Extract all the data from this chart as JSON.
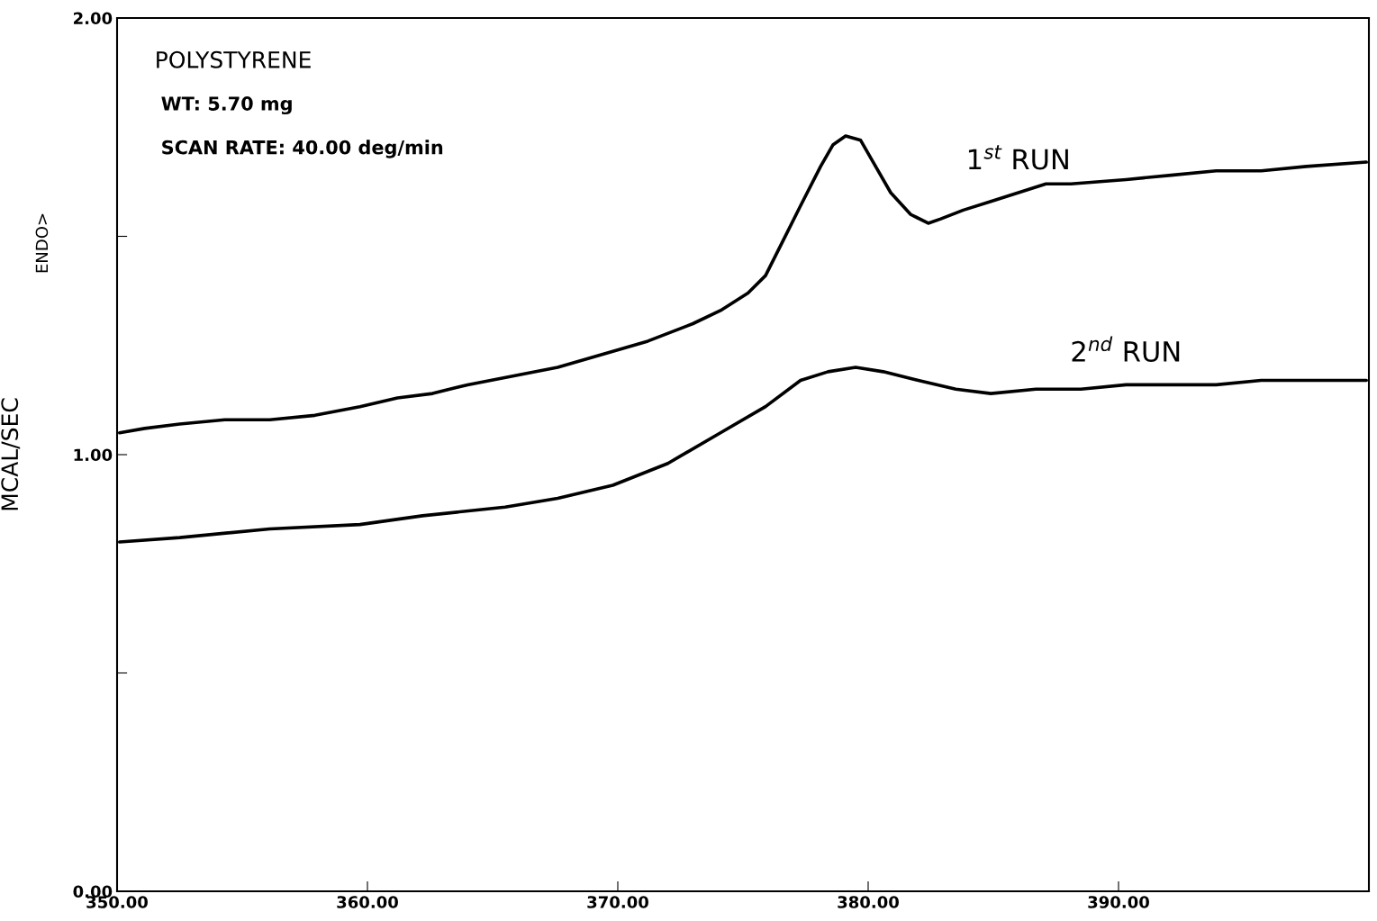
{
  "chart_data": {
    "type": "line",
    "ylabel": "MCAL/SEC",
    "annotations": [
      "POLYSTYRENE",
      "WT: 5.70 mg",
      "SCAN RATE: 40.00 deg/min",
      "ENDO>"
    ],
    "xlim": [
      350,
      400
    ],
    "ylim": [
      0,
      2
    ],
    "xticks": [
      {
        "value": 350,
        "label": "350.00"
      },
      {
        "value": 360,
        "label": "360.00"
      },
      {
        "value": 370,
        "label": "370.00"
      },
      {
        "value": 380,
        "label": "380.00"
      },
      {
        "value": 390,
        "label": "390.00"
      }
    ],
    "yticks": [
      {
        "value": 0,
        "label": "0.00"
      },
      {
        "value": 0.5,
        "label": null
      },
      {
        "value": 1,
        "label": "1.00"
      },
      {
        "value": 1.5,
        "label": null
      },
      {
        "value": 2,
        "label": "2.00"
      }
    ],
    "grid": false,
    "legend": false,
    "marker": "none",
    "line_style": "solid",
    "series": [
      {
        "name": "1$^{st}$ RUN",
        "color": "#000000",
        "x": [
          350.1,
          351.1,
          352.5,
          354.3,
          356.1,
          357.9,
          359.7,
          361.2,
          362.6,
          364.0,
          365.8,
          367.6,
          369.4,
          371.2,
          373.0,
          374.1,
          375.2,
          375.9,
          376.6,
          377.3,
          378.1,
          378.6,
          379.1,
          379.7,
          380.2,
          380.9,
          381.7,
          382.4,
          382.9,
          383.8,
          384.9,
          386.0,
          387.1,
          388.1,
          390.3,
          392.1,
          393.9,
          395.7,
          397.5,
          399.9
        ],
        "values": [
          1.05,
          1.06,
          1.07,
          1.08,
          1.08,
          1.09,
          1.11,
          1.13,
          1.14,
          1.16,
          1.18,
          1.2,
          1.23,
          1.26,
          1.3,
          1.33,
          1.37,
          1.41,
          1.49,
          1.57,
          1.66,
          1.71,
          1.73,
          1.72,
          1.67,
          1.6,
          1.55,
          1.53,
          1.54,
          1.56,
          1.58,
          1.6,
          1.62,
          1.62,
          1.63,
          1.64,
          1.65,
          1.65,
          1.66,
          1.67
        ]
      },
      {
        "name": "2$^{nd}$ RUN",
        "color": "#000000",
        "x": [
          350.1,
          352.5,
          356.1,
          359.7,
          362.2,
          365.5,
          367.6,
          369.8,
          372.0,
          374.1,
          375.9,
          377.3,
          378.4,
          379.5,
          380.6,
          382.0,
          383.5,
          384.9,
          386.7,
          388.5,
          390.3,
          392.1,
          393.9,
          395.7,
          397.5,
          399.9
        ],
        "values": [
          0.8,
          0.81,
          0.83,
          0.84,
          0.86,
          0.88,
          0.9,
          0.93,
          0.98,
          1.05,
          1.11,
          1.17,
          1.19,
          1.2,
          1.19,
          1.17,
          1.15,
          1.14,
          1.15,
          1.15,
          1.16,
          1.16,
          1.16,
          1.17,
          1.17,
          1.17
        ]
      }
    ]
  }
}
